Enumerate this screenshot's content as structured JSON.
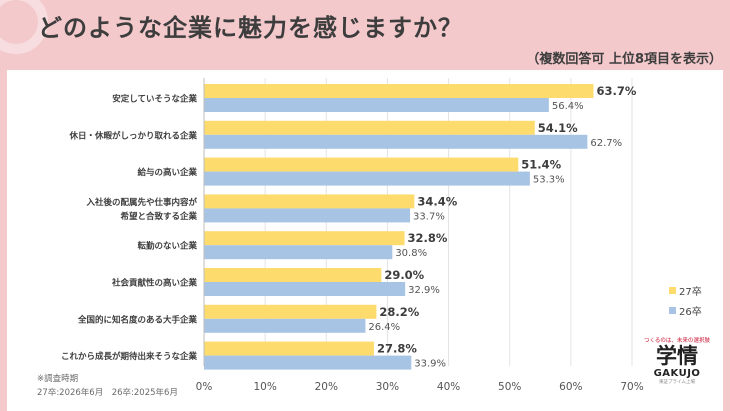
{
  "header": {
    "title": "どのような企業に魅力を感じますか？",
    "subtitle": "（複数回答可 上位8項目を表示）"
  },
  "chart_data": {
    "type": "bar",
    "orientation": "horizontal",
    "categories": [
      [
        "安定していそうな企業"
      ],
      [
        "休日・休暇がしっかり取れる企業"
      ],
      [
        "給与の高い企業"
      ],
      [
        "入社後の配属先や仕事内容が",
        "希望と合致する企業"
      ],
      [
        "転勤のない企業"
      ],
      [
        "社会貢献性の高い企業"
      ],
      [
        "全国的に知名度のある大手企業"
      ],
      [
        "これから成長が期待出来そうな企業"
      ]
    ],
    "series": [
      {
        "name": "27卒",
        "color": "#fddb6d",
        "values": [
          63.7,
          54.1,
          51.4,
          34.4,
          32.8,
          29.0,
          28.2,
          27.8
        ],
        "labels": [
          "63.7%",
          "54.1%",
          "51.4%",
          "34.4%",
          "32.8%",
          "29.0%",
          "28.2%",
          "27.8%"
        ]
      },
      {
        "name": "26卒",
        "color": "#a7c4e5",
        "values": [
          56.4,
          62.7,
          53.3,
          33.7,
          30.8,
          32.9,
          26.4,
          33.9
        ],
        "labels": [
          "56.4%",
          "62.7%",
          "53.3%",
          "33.7%",
          "30.8%",
          "32.9%",
          "26.4%",
          "33.9%"
        ]
      }
    ],
    "xlim": [
      0,
      70
    ],
    "xticks": [
      "0%",
      "10%",
      "20%",
      "30%",
      "40%",
      "50%",
      "60%",
      "70%"
    ],
    "grid": true,
    "legend_position": "right"
  },
  "footnote": {
    "line1": "※調査時期",
    "line2": "27卒:2026年6月　26卒:2025年6月"
  },
  "logo": {
    "tagline": "つくるのは、未来の選択肢",
    "main": "学情",
    "english": "GAKUJO",
    "sub": "東証プライム上場"
  }
}
